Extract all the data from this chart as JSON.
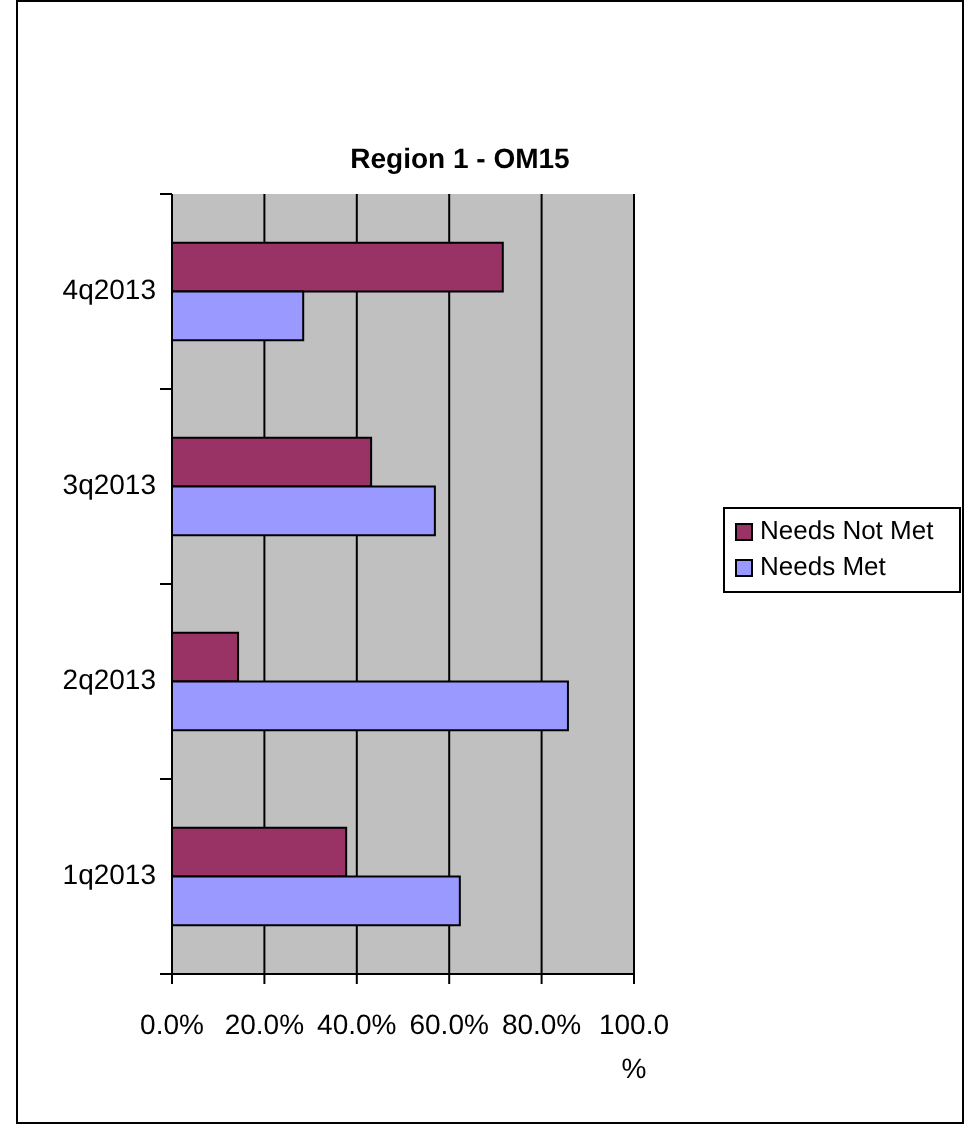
{
  "chart_data": {
    "type": "bar",
    "orientation": "horizontal",
    "title": "Region 1 - OM15",
    "categories": [
      "4q2013",
      "3q2013",
      "2q2013",
      "1q2013"
    ],
    "series": [
      {
        "name": "Needs Not Met",
        "color": "#993366",
        "values": [
          71.6,
          43.1,
          14.3,
          37.7
        ]
      },
      {
        "name": "Needs Met",
        "color": "#9999ff",
        "values": [
          28.4,
          56.9,
          85.7,
          62.3
        ]
      }
    ],
    "xlim": [
      0,
      100
    ],
    "xticks": [
      {
        "value": 0,
        "label": "0.0%"
      },
      {
        "value": 20,
        "label": "20.0%"
      },
      {
        "value": 40,
        "label": "40.0%"
      },
      {
        "value": 60,
        "label": "60.0%"
      },
      {
        "value": 80,
        "label": "80.0%"
      },
      {
        "value": 100,
        "label": "100.0%"
      }
    ],
    "grid": "x",
    "legend": "right"
  }
}
